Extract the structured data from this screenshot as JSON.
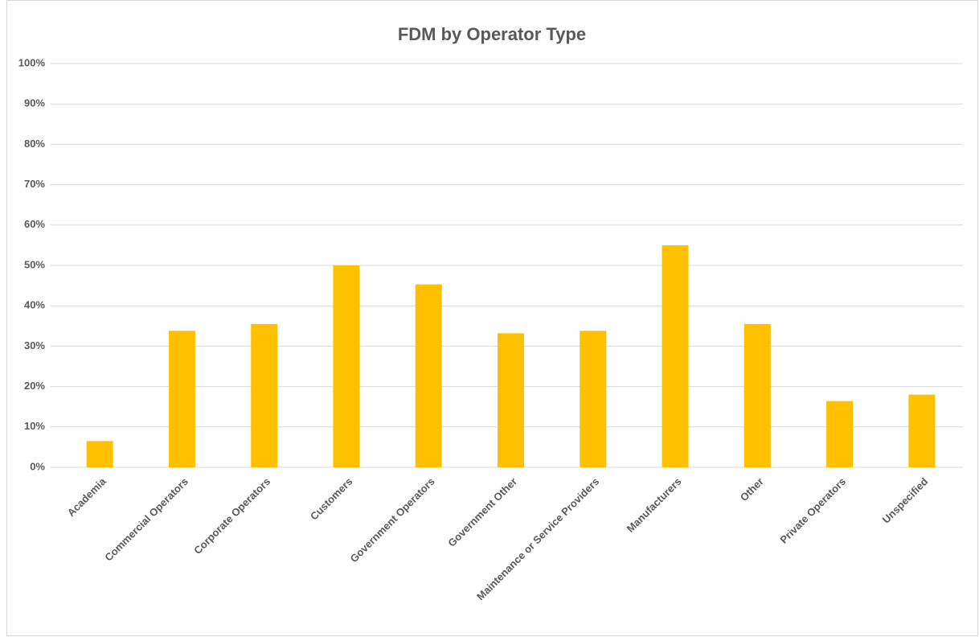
{
  "chart_data": {
    "type": "bar",
    "title": "FDM by Operator Type",
    "categories": [
      "Academia",
      "Commercial Operators",
      "Corporate Operators",
      "Customers",
      "Government Operators",
      "Government Other",
      "Maintenance or Service Providers",
      "Manufacturers",
      "Other",
      "Private Operators",
      "Unspecified"
    ],
    "values": [
      6.5,
      33.8,
      35.5,
      50,
      45.3,
      33.2,
      33.8,
      55,
      35.5,
      16.4,
      18
    ],
    "color": "#ffc000",
    "ylim": [
      0,
      100
    ],
    "yticks": [
      {
        "value": 0,
        "label": "0%"
      },
      {
        "value": 10,
        "label": "10%"
      },
      {
        "value": 20,
        "label": "20%"
      },
      {
        "value": 30,
        "label": "30%"
      },
      {
        "value": 40,
        "label": "40%"
      },
      {
        "value": 50,
        "label": "50%"
      },
      {
        "value": 60,
        "label": "60%"
      },
      {
        "value": 70,
        "label": "70%"
      },
      {
        "value": 80,
        "label": "80%"
      },
      {
        "value": 90,
        "label": "90%"
      },
      {
        "value": 100,
        "label": "100%"
      }
    ],
    "grid": true
  }
}
